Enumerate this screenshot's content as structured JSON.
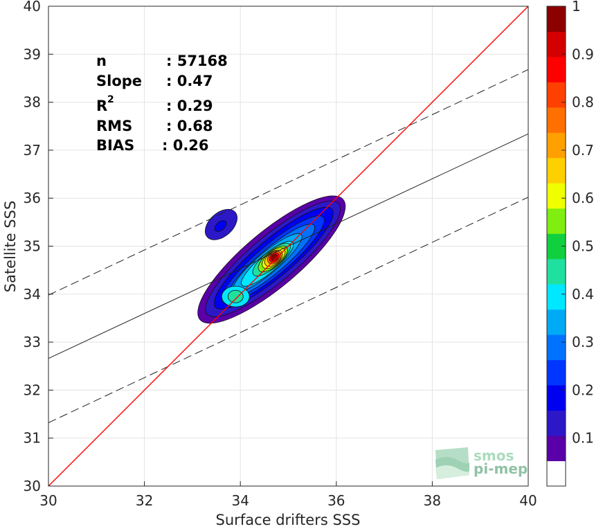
{
  "chart_data": {
    "type": "contour",
    "xlabel": "Surface drifters SSS",
    "ylabel": "Satellite SSS",
    "xlim": [
      30,
      40
    ],
    "ylim": [
      30,
      40
    ],
    "xticks": [
      "30",
      "32",
      "34",
      "36",
      "38",
      "40"
    ],
    "yticks": [
      "30",
      "31",
      "32",
      "33",
      "34",
      "35",
      "36",
      "37",
      "38",
      "39",
      "40"
    ],
    "grid": true,
    "stats": [
      {
        "label": "n",
        "value": ": 57168"
      },
      {
        "label": "Slope",
        "value": ": 0.47"
      },
      {
        "label": "R",
        "sup": "2",
        "value": ": 0.29"
      },
      {
        "label": "RMS",
        "value": ": 0.68"
      },
      {
        "label": "BIAS",
        "value": ": 0.26"
      }
    ],
    "identity_line": {
      "color": "#ff0000",
      "points": [
        [
          30,
          30
        ],
        [
          40,
          40
        ]
      ]
    },
    "regression_line": {
      "points": [
        [
          30,
          32.66
        ],
        [
          40,
          37.34
        ]
      ]
    },
    "upper_band": {
      "points": [
        [
          30,
          33.98
        ],
        [
          40,
          38.68
        ]
      ]
    },
    "lower_band": {
      "points": [
        [
          30,
          31.32
        ],
        [
          40,
          36.02
        ]
      ]
    },
    "density_peak": {
      "x": 34.65,
      "y": 34.72
    },
    "secondary_blob": {
      "x": 33.6,
      "y": 35.45
    },
    "colorbar": {
      "range": [
        0,
        1
      ],
      "ticks": [
        "0.1",
        "0.2",
        "0.3",
        "0.4",
        "0.5",
        "0.6",
        "0.7",
        "0.8",
        "0.9",
        "1"
      ],
      "colors": [
        "#ffffff",
        "#5a00a8",
        "#2d18c8",
        "#0000f0",
        "#0036ff",
        "#0072ff",
        "#00aaf5",
        "#00e8ff",
        "#20e0a0",
        "#10d040",
        "#80ee10",
        "#f0ff00",
        "#ffd000",
        "#ffa000",
        "#ff7000",
        "#ff4000",
        "#ff0000",
        "#d40000",
        "#8c0000"
      ]
    },
    "logo": {
      "line1": "smos",
      "line2": "pi-mep"
    }
  }
}
